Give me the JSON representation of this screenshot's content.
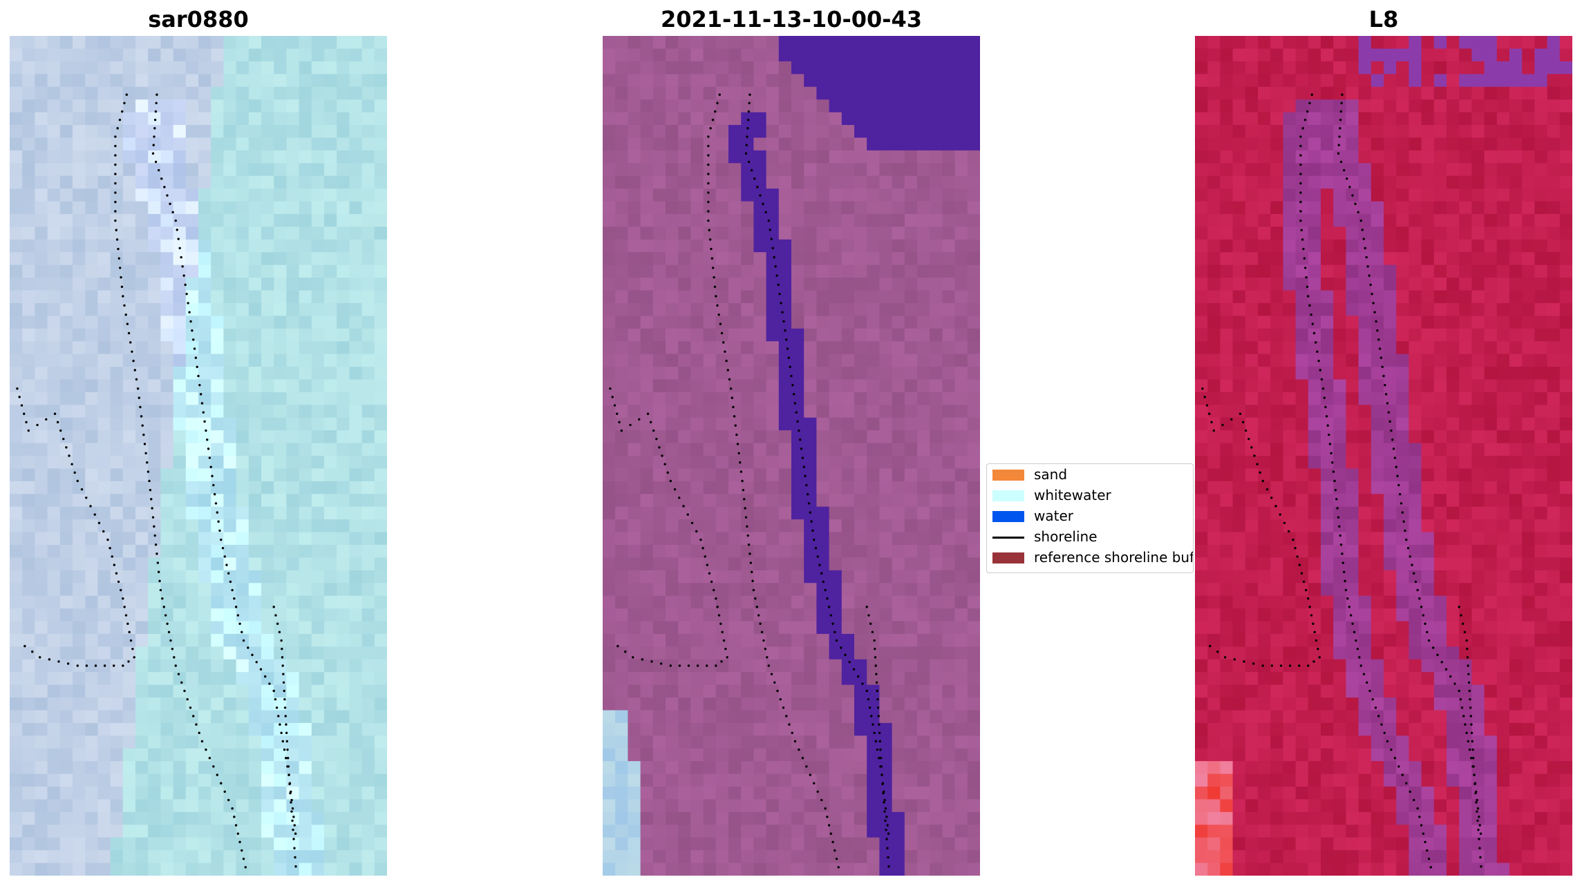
{
  "panels": [
    {
      "title": "sar0880",
      "base": "#bfcfe6",
      "variant": "rgb-composite"
    },
    {
      "title": "2021-11-13-10-00-43",
      "base": "#a05a92",
      "variant": "classified-overlay"
    },
    {
      "title": "L8",
      "base": "#c21e4e",
      "variant": "index-map"
    }
  ],
  "legend": {
    "items": [
      {
        "label": "sand",
        "color": "#f4883a",
        "kind": "patch"
      },
      {
        "label": "whitewater",
        "color": "#ccffff",
        "kind": "patch"
      },
      {
        "label": "water",
        "color": "#0055ee",
        "kind": "patch"
      },
      {
        "label": "shoreline",
        "color": "#000000",
        "kind": "line"
      },
      {
        "label": "reference shoreline buffer",
        "color": "#99333a",
        "kind": "patch"
      }
    ]
  },
  "colors": {
    "water_class": "#4f22a0",
    "shoreline_points": "#000000"
  }
}
